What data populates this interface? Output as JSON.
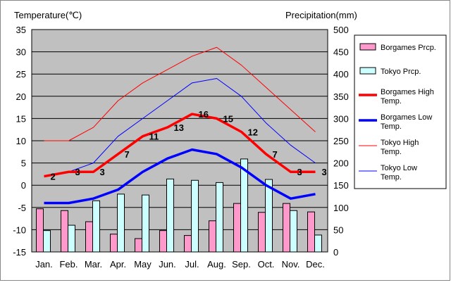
{
  "chart_data": {
    "type": "bar",
    "categories": [
      "Jan.",
      "Feb.",
      "Mar.",
      "Apr.",
      "May",
      "Jun.",
      "Jul.",
      "Aug.",
      "Sep.",
      "Oct.",
      "Nov.",
      "Dec."
    ],
    "left_axis": {
      "label": "Temperature(℃)",
      "ylim": [
        -15,
        35
      ],
      "ticks": [
        -15,
        -10,
        -5,
        0,
        5,
        10,
        15,
        20,
        25,
        30,
        35
      ]
    },
    "right_axis": {
      "label": "Precipitation(mm)",
      "ylim": [
        0,
        500
      ],
      "ticks": [
        0,
        50,
        100,
        150,
        200,
        250,
        300,
        350,
        400,
        450,
        500
      ]
    },
    "grid": true,
    "legend_position": "right",
    "bar_series": [
      {
        "name": "Borgames Prcp.",
        "color": "#ff99cc",
        "values": [
          97,
          93,
          68,
          40,
          30,
          48,
          37,
          70,
          109,
          89,
          109,
          90
        ]
      },
      {
        "name": "Tokyo Prcp.",
        "color": "#ccffff",
        "values": [
          48,
          60,
          115,
          130,
          128,
          164,
          161,
          156,
          209,
          163,
          93,
          38
        ]
      }
    ],
    "line_series": [
      {
        "name": "Borgames High Temp.",
        "color": "#ff0000",
        "width": "thick",
        "values": [
          2,
          3,
          3,
          7,
          11,
          13,
          16,
          15,
          12,
          7,
          3,
          3
        ]
      },
      {
        "name": "Borgames Low Temp.",
        "color": "#0000ff",
        "width": "thick",
        "values": [
          -4,
          -4,
          -3,
          -1,
          3,
          6,
          8,
          7,
          4,
          0,
          -3,
          -2
        ]
      },
      {
        "name": "Tokyo High Temp.",
        "color": "#ff0000",
        "width": "thin",
        "values": [
          10,
          10,
          13,
          19,
          23,
          26,
          29,
          31,
          27,
          22,
          17,
          12
        ]
      },
      {
        "name": "Tokyo Low Temp.",
        "color": "#0000ff",
        "width": "thin",
        "values": [
          2,
          3,
          5,
          11,
          15,
          19,
          23,
          24,
          20,
          14,
          9,
          5
        ]
      }
    ],
    "data_labels": {
      "series": "Borgames High Temp.",
      "labels": [
        "2",
        "3",
        "3",
        "7",
        "11",
        "13",
        "16",
        "15",
        "12",
        "7",
        "3",
        "3"
      ]
    },
    "legend_entries": [
      "Borgames Prcp.",
      "Tokyo Prcp.",
      "Borgames High\nTemp.",
      "Borgames Low\nTemp.",
      "Tokyo High\nTemp.",
      "Tokyo Low\nTemp."
    ]
  }
}
